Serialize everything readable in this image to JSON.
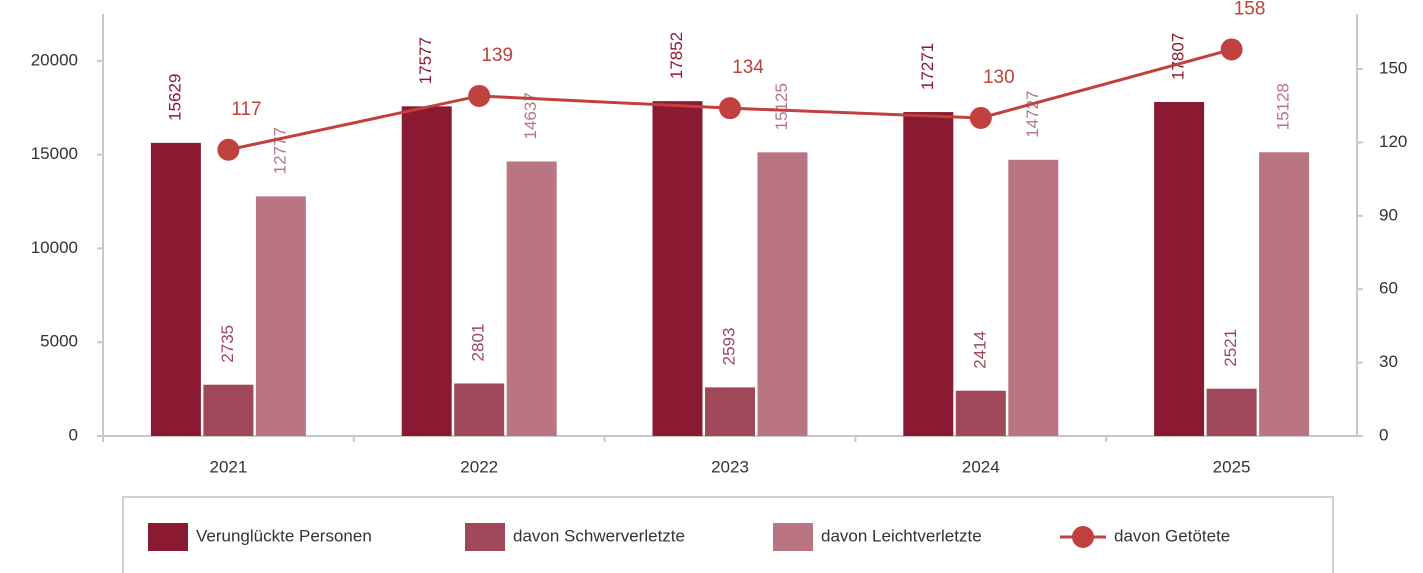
{
  "chart_data": {
    "type": "bar",
    "categories": [
      "2021",
      "2022",
      "2023",
      "2024",
      "2025"
    ],
    "series": [
      {
        "name": "Verunglückte Personen",
        "color": "#8a1a32",
        "values": [
          15629,
          17577,
          17852,
          17271,
          17807
        ]
      },
      {
        "name": "davon Schwerverletzte",
        "color": "#a0475a",
        "values": [
          2735,
          2801,
          2593,
          2414,
          2521
        ]
      },
      {
        "name": "davon Leichtverletzte",
        "color": "#b97682",
        "values": [
          12777,
          14637,
          15125,
          14727,
          15128
        ]
      },
      {
        "name": "davon Getötete",
        "type": "line",
        "axis": "y2",
        "color": "#c0413d",
        "values": [
          117,
          139,
          134,
          130,
          158
        ]
      }
    ],
    "ylim": [
      0,
      22500
    ],
    "yticks": [
      0,
      5000,
      10000,
      15000,
      20000
    ],
    "y2lim": [
      0,
      172.5
    ],
    "y2ticks": [
      0,
      30,
      60,
      90,
      120,
      150
    ],
    "grid": false,
    "legend": "bottom"
  }
}
